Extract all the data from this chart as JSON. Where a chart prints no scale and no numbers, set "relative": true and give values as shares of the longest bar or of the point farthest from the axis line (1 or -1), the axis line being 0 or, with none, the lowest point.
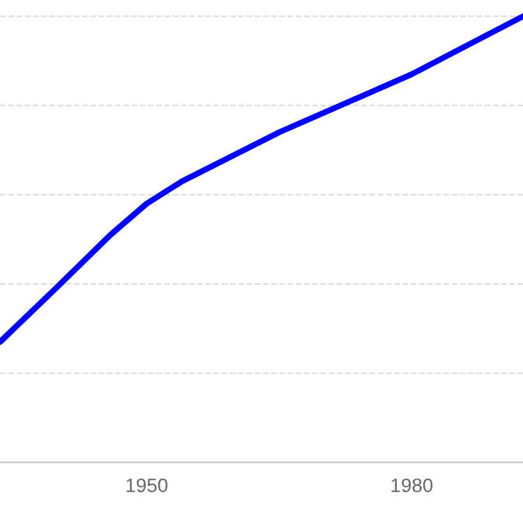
{
  "chart_data": {
    "type": "line",
    "relative": true,
    "x": [
      1933.4,
      1939.7,
      1945.9,
      1950,
      1954,
      1965,
      1980,
      1992.6
    ],
    "series": [
      {
        "color": "#0000ff",
        "values": [
          0.27,
          0.39,
          0.51,
          0.58,
          0.63,
          0.74,
          0.87,
          1
        ]
      }
    ],
    "xlim": [
      1933.4,
      1992.6
    ],
    "xticks": [
      1950,
      1980
    ],
    "grid": "y",
    "tick_labels": "x",
    "legend": false,
    "marker": "none",
    "line_style": "solid"
  }
}
